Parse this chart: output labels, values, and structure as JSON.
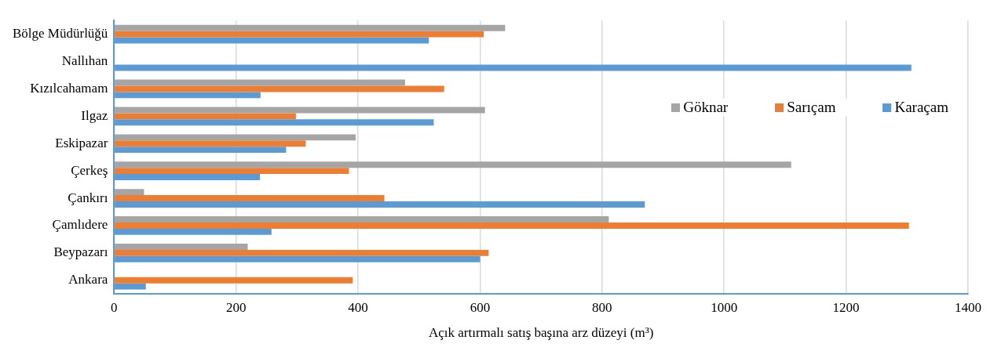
{
  "chart_data": {
    "type": "bar",
    "orientation": "horizontal",
    "categories": [
      "Bölge Müdürlüğü",
      "Nallıhan",
      "Kızılcahamam",
      "Ilgaz",
      "Eskipazar",
      "Çerkeş",
      "Çankırı",
      "Çamlıdere",
      "Beypazarı",
      "Ankara"
    ],
    "series": [
      {
        "name": "Göknar",
        "color": "#a5a5a5",
        "values": [
          641,
          null,
          477,
          608,
          396,
          1110,
          49,
          811,
          219,
          null
        ]
      },
      {
        "name": "Sarıçam",
        "color": "#ed7d31",
        "values": [
          606,
          null,
          541,
          298,
          314,
          385,
          443,
          1303,
          614,
          391
        ]
      },
      {
        "name": "Karaçam",
        "color": "#5b9bd5",
        "values": [
          516,
          1307,
          240,
          524,
          282,
          239,
          870,
          258,
          600,
          52
        ]
      }
    ],
    "xlabel": "Açık artırmalı satış başına arz düzeyi (m³)",
    "xlim": [
      0,
      1400
    ],
    "xticks": [
      0,
      200,
      400,
      600,
      800,
      1000,
      1200,
      1400
    ],
    "grid": "x",
    "legend": "right"
  }
}
